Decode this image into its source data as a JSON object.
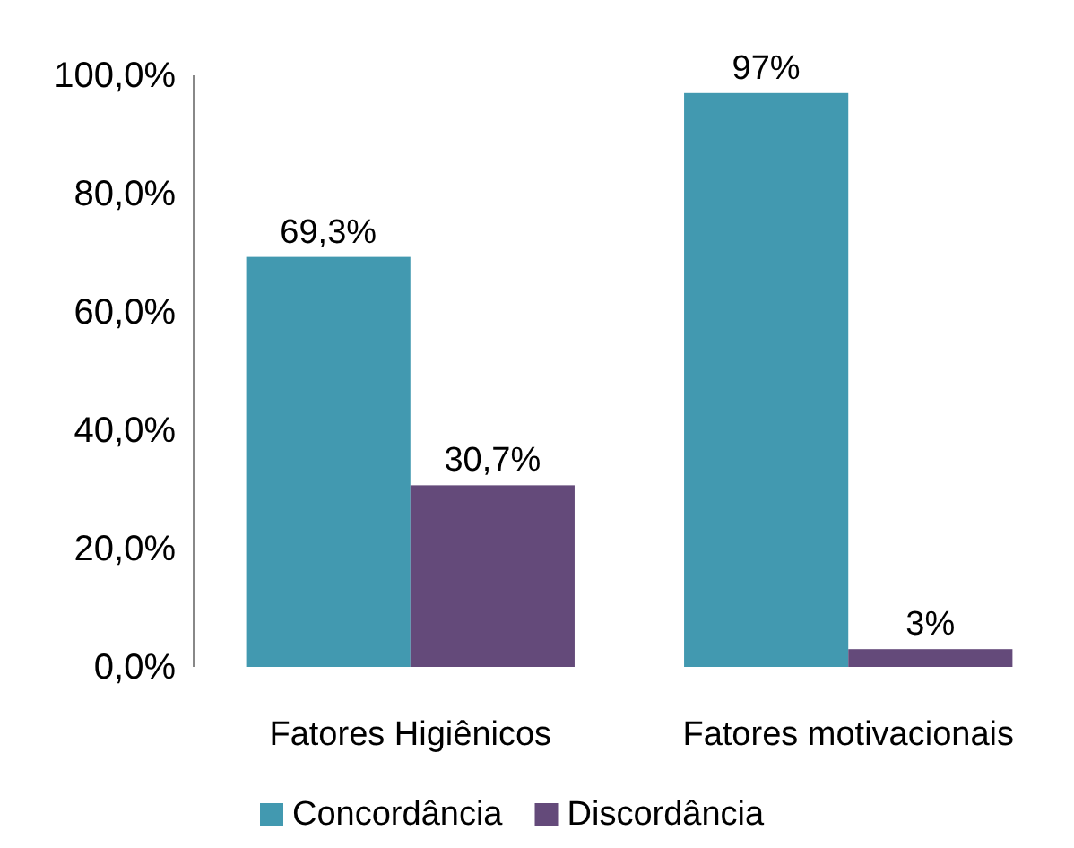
{
  "chart_data": {
    "type": "bar",
    "categories": [
      "Fatores Higiênicos",
      "Fatores motivacionais"
    ],
    "series": [
      {
        "name": "Concordância",
        "color": "#4299b0",
        "values": [
          69.3,
          97
        ],
        "value_labels": [
          "69,3%",
          "97%"
        ]
      },
      {
        "name": "Discordância",
        "color": "#644a7a",
        "values": [
          30.7,
          3
        ],
        "value_labels": [
          "30,7%",
          "3%"
        ]
      }
    ],
    "ylim": [
      0,
      100
    ],
    "yticks": [
      {
        "value": 0,
        "label": "0,0%"
      },
      {
        "value": 20,
        "label": "20,0%"
      },
      {
        "value": 40,
        "label": "40,0%"
      },
      {
        "value": 60,
        "label": "60,0%"
      },
      {
        "value": 80,
        "label": "80,0%"
      },
      {
        "value": 100,
        "label": "100,0%"
      }
    ],
    "grid": false,
    "legend": "bottom"
  }
}
